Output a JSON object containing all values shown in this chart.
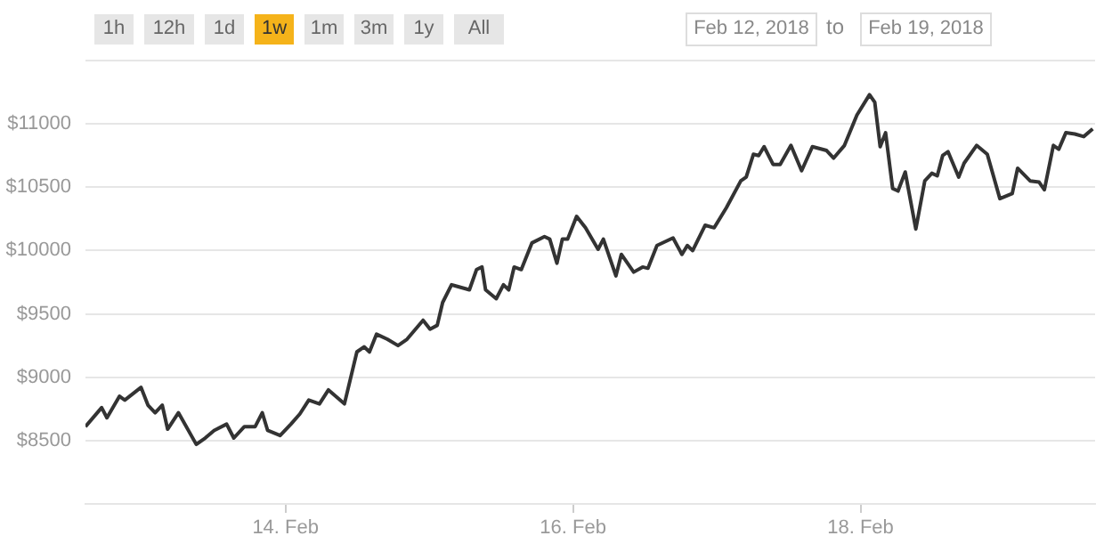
{
  "chart_data": {
    "type": "line",
    "color": "#333333",
    "grid": "y",
    "marker": "none",
    "line_style": "solid",
    "annotations": [
      "1h",
      "12h",
      "1d",
      "1w",
      "1m",
      "3m",
      "1y",
      "All",
      "Feb 12, 2018",
      "to",
      "Feb 19, 2018"
    ],
    "x": [
      "2018-02-12T14:36",
      "2018-02-12T17:18",
      "2018-02-12T18:11",
      "2018-02-12T20:17",
      "2018-02-12T21:10",
      "2018-02-12T23:52",
      "2018-02-13T01:02",
      "2018-02-13T02:14",
      "2018-02-13T03:25",
      "2018-02-13T04:19",
      "2018-02-13T06:07",
      "2018-02-13T09:06",
      "2018-02-13T10:35",
      "2018-02-13T12:05",
      "2018-02-13T14:10",
      "2018-02-13T15:22",
      "2018-02-13T17:08",
      "2018-02-13T18:56",
      "2018-02-13T20:07",
      "2018-02-13T21:01",
      "2018-02-13T23:06",
      "2018-02-14T00:54",
      "2018-02-14T02:23",
      "2018-02-14T03:53",
      "2018-02-14T05:40",
      "2018-02-14T07:10",
      "2018-02-14T09:50",
      "2018-02-14T11:55",
      "2018-02-14T13:07",
      "2018-02-14T14:01",
      "2018-02-14T15:12",
      "2018-02-14T17:00",
      "2018-02-14T18:47",
      "2018-02-14T20:17",
      "2018-02-14T22:58",
      "2018-02-15T00:08",
      "2018-02-15T01:20",
      "2018-02-15T02:14",
      "2018-02-15T03:43",
      "2018-02-15T06:42",
      "2018-02-15T07:54",
      "2018-02-15T08:48",
      "2018-02-15T09:24",
      "2018-02-15T11:11",
      "2018-02-15T12:23",
      "2018-02-15T13:16",
      "2018-02-15T14:10",
      "2018-02-15T15:22",
      "2018-02-15T17:08",
      "2018-02-15T19:14",
      "2018-02-15T20:07",
      "2018-02-15T21:19",
      "2018-02-15T22:13",
      "2018-02-15T23:06",
      "2018-02-16T00:36",
      "2018-02-16T02:05",
      "2018-02-16T04:11",
      "2018-02-16T05:04",
      "2018-02-16T07:10",
      "2018-02-16T08:04",
      "2018-02-16T10:08",
      "2018-02-16T11:37",
      "2018-02-16T12:31",
      "2018-02-16T14:01",
      "2018-02-16T16:42",
      "2018-02-16T18:11",
      "2018-02-16T19:05",
      "2018-02-16T19:59",
      "2018-02-16T22:04",
      "2018-02-16T23:34",
      "2018-02-17T01:38",
      "2018-02-17T04:01",
      "2018-02-17T04:55",
      "2018-02-17T06:07",
      "2018-02-17T07:00",
      "2018-02-17T07:54",
      "2018-02-17T09:24",
      "2018-02-17T10:35",
      "2018-02-17T12:23",
      "2018-02-17T14:10",
      "2018-02-17T15:58",
      "2018-02-17T18:20",
      "2018-02-17T19:31",
      "2018-02-17T21:19",
      "2018-02-17T23:24",
      "2018-02-18T01:30",
      "2018-02-18T02:23",
      "2018-02-18T03:17",
      "2018-02-18T04:11",
      "2018-02-18T05:22",
      "2018-02-18T06:16",
      "2018-02-18T07:28",
      "2018-02-18T09:14",
      "2018-02-18T10:44",
      "2018-02-18T11:55",
      "2018-02-18T12:49",
      "2018-02-18T13:43",
      "2018-02-18T14:37",
      "2018-02-18T16:24",
      "2018-02-18T17:18",
      "2018-02-18T19:23",
      "2018-02-18T21:10",
      "2018-02-18T23:16",
      "2018-02-19T01:20",
      "2018-02-19T02:14",
      "2018-02-19T04:19",
      "2018-02-19T05:49",
      "2018-02-19T06:42",
      "2018-02-19T08:12",
      "2018-02-19T09:06",
      "2018-02-19T10:17",
      "2018-02-19T11:47",
      "2018-02-19T13:16",
      "2018-02-19T14:46"
    ],
    "values": [
      8610,
      8760,
      8680,
      8850,
      8820,
      8920,
      8780,
      8720,
      8780,
      8590,
      8720,
      8470,
      8520,
      8580,
      8630,
      8520,
      8610,
      8610,
      8720,
      8580,
      8540,
      8630,
      8710,
      8820,
      8790,
      8900,
      8790,
      9200,
      9240,
      9200,
      9340,
      9300,
      9250,
      9300,
      9450,
      9380,
      9410,
      9590,
      9730,
      9690,
      9850,
      9870,
      9690,
      9620,
      9730,
      9690,
      9870,
      9850,
      10060,
      10110,
      10090,
      9900,
      10090,
      10090,
      10270,
      10180,
      10010,
      10090,
      9800,
      9970,
      9830,
      9870,
      9860,
      10040,
      10100,
      9970,
      10040,
      10000,
      10200,
      10180,
      10340,
      10550,
      10580,
      10760,
      10750,
      10820,
      10680,
      10680,
      10830,
      10630,
      10820,
      10790,
      10730,
      10830,
      11070,
      11230,
      11170,
      10820,
      10930,
      10490,
      10470,
      10620,
      10170,
      10550,
      10610,
      10590,
      10750,
      10780,
      10580,
      10690,
      10830,
      10760,
      10410,
      10450,
      10650,
      10550,
      10540,
      10480,
      10830,
      10800,
      10930,
      10920,
      10900,
      10960
    ],
    "xlim": [
      "2018-02-12T14:36",
      "2018-02-19T15:10"
    ],
    "xticks": [
      {
        "value": "2018-02-14",
        "label": "14. Feb"
      },
      {
        "value": "2018-02-16",
        "label": "16. Feb"
      },
      {
        "value": "2018-02-18",
        "label": "18. Feb"
      }
    ],
    "ylim": [
      8000,
      11500
    ],
    "yticks": [
      {
        "value": 8000,
        "label": null
      },
      {
        "value": 8500,
        "label": "$8500"
      },
      {
        "value": 9000,
        "label": "$9000"
      },
      {
        "value": 9500,
        "label": "$9500"
      },
      {
        "value": 10000,
        "label": "$10000"
      },
      {
        "value": 10500,
        "label": "$10500"
      },
      {
        "value": 11000,
        "label": "$11000"
      },
      {
        "value": 11500,
        "label": null
      }
    ]
  }
}
